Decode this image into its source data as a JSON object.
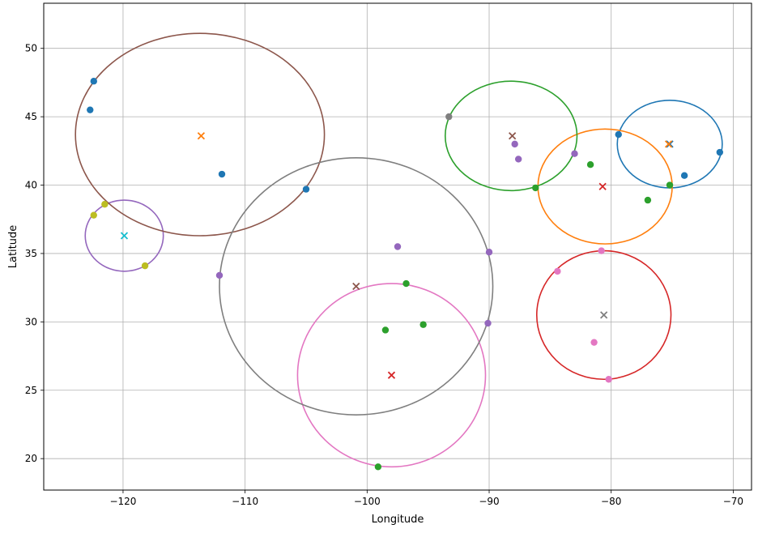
{
  "chart_data": {
    "type": "scatter",
    "xlabel": "Longitude",
    "ylabel": "Latitude",
    "xlim": [
      -126.5,
      -68.5
    ],
    "ylim": [
      17.7,
      53.3
    ],
    "grid": true,
    "xticks": [
      -120,
      -110,
      -100,
      -90,
      -80,
      -70
    ],
    "yticks": [
      20,
      25,
      30,
      35,
      40,
      45,
      50
    ],
    "xtick_labels": [
      "−120",
      "−110",
      "−100",
      "−90",
      "−80",
      "−70"
    ],
    "ytick_labels": [
      "20",
      "25",
      "30",
      "35",
      "40",
      "45",
      "50"
    ],
    "clusters": [
      {
        "color": "#1f77b4",
        "points": [
          [
            -122.4,
            47.6
          ],
          [
            -122.7,
            45.5
          ],
          [
            -111.9,
            40.8
          ],
          [
            -105.0,
            39.7
          ],
          [
            -79.4,
            43.7
          ],
          [
            -74.0,
            40.7
          ],
          [
            -71.1,
            42.4
          ]
        ],
        "centroid": [
          -75.2,
          43.0
        ],
        "circle": {
          "center": [
            -75.2,
            43.0
          ],
          "rx": 4.3,
          "ry": 3.2
        }
      },
      {
        "color": "#ff7f0e",
        "points": [],
        "centroid": [
          -113.6,
          43.6
        ],
        "circle": {
          "center": [
            -80.5,
            39.9
          ],
          "rx": 5.5,
          "ry": 4.2
        }
      },
      {
        "color": "#2ca02c",
        "points": [
          [
            -86.2,
            39.8
          ],
          [
            -81.7,
            41.5
          ],
          [
            -77.0,
            38.9
          ],
          [
            -75.2,
            40.0
          ],
          [
            -96.8,
            32.8
          ],
          [
            -98.5,
            29.4
          ],
          [
            -95.4,
            29.8
          ],
          [
            -99.1,
            19.4
          ]
        ],
        "centroid": null,
        "circle": {
          "center": [
            -88.2,
            43.6
          ],
          "rx": 5.4,
          "ry": 4.0
        }
      },
      {
        "color": "#d62728",
        "points": [],
        "centroid": [
          -98.0,
          26.1
        ],
        "circle": {
          "center": [
            -80.6,
            30.5
          ],
          "rx": 5.5,
          "ry": 4.7
        }
      },
      {
        "color": "#9467bd",
        "points": [
          [
            -87.9,
            43.0
          ],
          [
            -87.6,
            41.9
          ],
          [
            -83.0,
            42.3
          ],
          [
            -97.5,
            35.5
          ],
          [
            -90.0,
            35.1
          ],
          [
            -90.1,
            29.9
          ],
          [
            -112.1,
            33.4
          ]
        ],
        "centroid": null,
        "circle": {
          "center": [
            -119.9,
            36.3
          ],
          "rx": 3.2,
          "ry": 2.6
        }
      },
      {
        "color": "#8c564b",
        "points": [],
        "centroid": [
          -88.1,
          43.6
        ],
        "circle": {
          "center": [
            -113.7,
            43.7
          ],
          "rx": 10.2,
          "ry": 7.4
        }
      },
      {
        "color": "#e377c2",
        "points": [
          [
            -84.4,
            33.7
          ],
          [
            -80.8,
            35.2
          ],
          [
            -81.4,
            28.5
          ],
          [
            -80.2,
            25.8
          ]
        ],
        "centroid": null,
        "circle": {
          "center": [
            -98.0,
            26.1
          ],
          "rx": 7.7,
          "ry": 6.7
        }
      },
      {
        "color": "#7f7f7f",
        "points": [
          [
            -93.3,
            45.0
          ]
        ],
        "centroid": [
          -80.6,
          30.5
        ],
        "circle": {
          "center": [
            -100.9,
            32.6
          ],
          "rx": 11.2,
          "ry": 9.4
        }
      },
      {
        "color": "#bcbd22",
        "points": [
          [
            -122.4,
            37.8
          ],
          [
            -121.5,
            38.6
          ],
          [
            -118.2,
            34.1
          ]
        ],
        "centroid": null,
        "circle": null
      },
      {
        "color": "#17becf",
        "points": [],
        "centroid": [
          -119.9,
          36.3
        ],
        "circle": null
      },
      {
        "color": "#8c564b",
        "points": [],
        "centroid": [
          -100.9,
          32.6
        ],
        "circle": null
      },
      {
        "color": "#d62728",
        "points": [],
        "centroid": [
          -80.7,
          39.9
        ],
        "circle": null
      },
      {
        "color": "#ff7f0e",
        "points": [],
        "centroid": [
          -75.3,
          43.0
        ],
        "circle": null
      }
    ]
  }
}
